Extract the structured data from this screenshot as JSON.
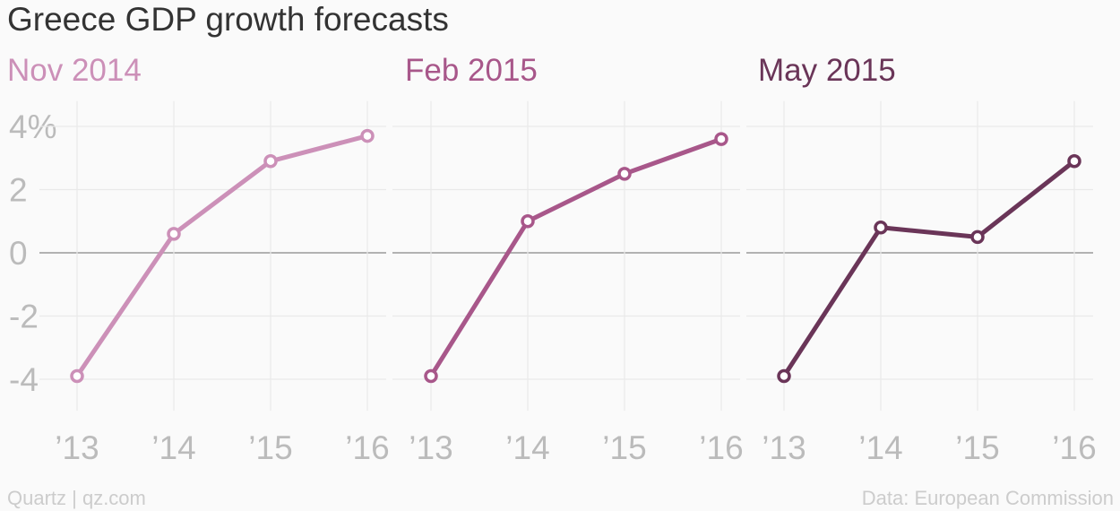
{
  "title": "Greece GDP growth forecasts",
  "source": "Data: European Commission",
  "credit": "Quartz | qz.com",
  "chart_data": {
    "type": "line",
    "unit": "%",
    "x_ticks": [
      "’13",
      "’14",
      "’15",
      "’16"
    ],
    "y_ticks": [
      4,
      2,
      0,
      -2,
      -4
    ],
    "y_tick_labels": [
      "4%",
      "2",
      "0",
      "-2",
      "-4"
    ],
    "ylim": [
      -5,
      4.8
    ],
    "grid": true,
    "x": [
      2013,
      2014,
      2015,
      2016
    ],
    "panels": [
      {
        "name": "Nov 2014",
        "color": "#cc90b8",
        "values": [
          -3.9,
          0.6,
          2.9,
          3.7
        ]
      },
      {
        "name": "Feb 2015",
        "color": "#a8578a",
        "values": [
          -3.9,
          1.0,
          2.5,
          3.6
        ]
      },
      {
        "name": "May 2015",
        "color": "#6a3558",
        "values": [
          -3.9,
          0.8,
          0.5,
          2.9
        ]
      }
    ]
  }
}
